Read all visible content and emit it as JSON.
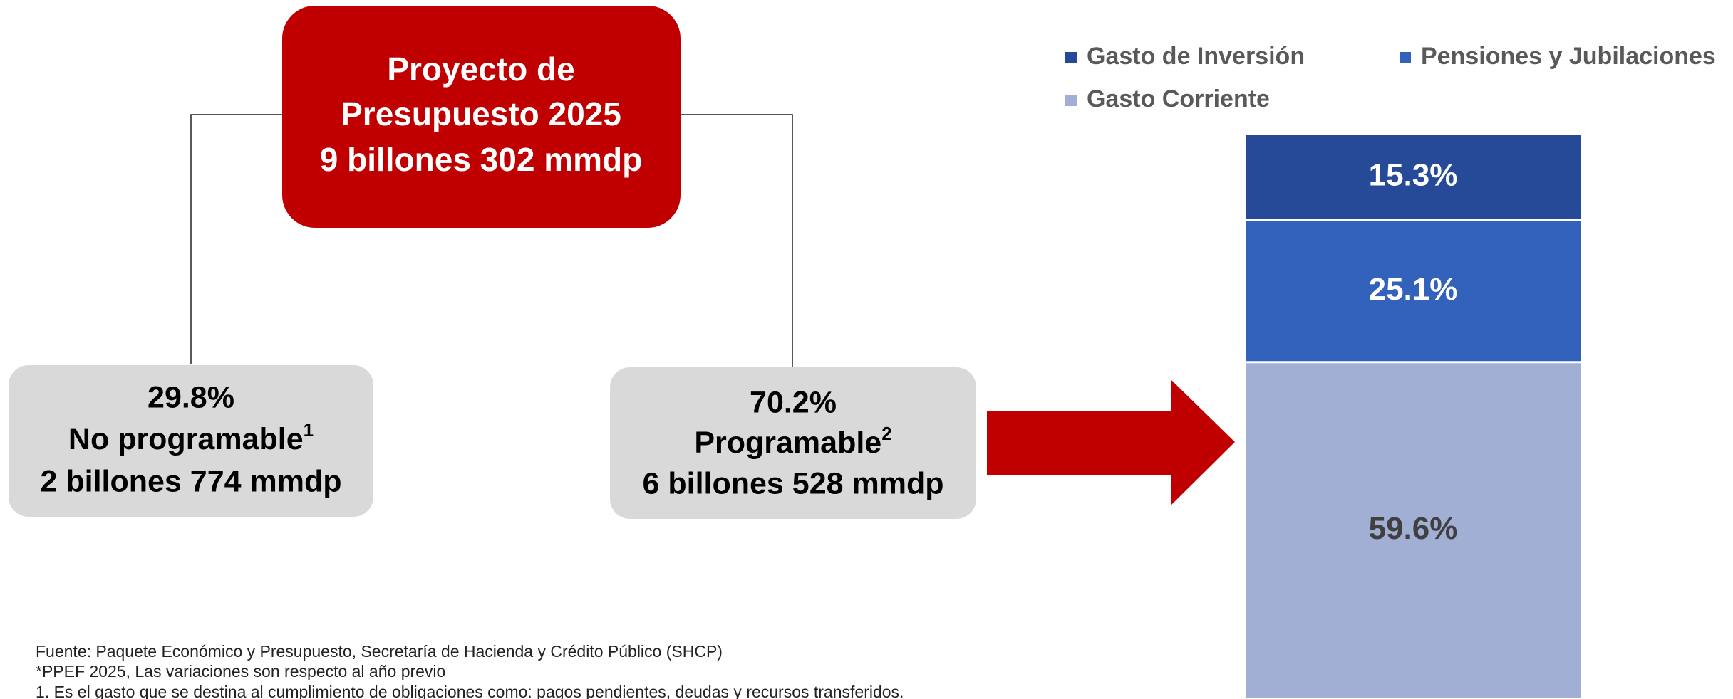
{
  "diagram": {
    "root": {
      "lines": [
        "Proyecto de",
        "Presupuesto 2025",
        "9 billones 302 mmdp"
      ]
    },
    "left": {
      "share": "29.8%",
      "label": "No programable",
      "sup": "1",
      "amount": "2 billones 774 mmdp"
    },
    "right": {
      "share": "70.2%",
      "label": "Programable",
      "sup": "2",
      "amount": "6 billones 528 mmdp"
    }
  },
  "chart_data": {
    "type": "stacked_bar",
    "ylim": [
      0,
      100
    ],
    "series": [
      {
        "name": "Gasto de Inversión",
        "color": "#264a97",
        "values": [
          15.3
        ],
        "value_labels": [
          "15.3%"
        ]
      },
      {
        "name": "Pensiones y Jubilaciones",
        "color": "#3262bc",
        "values": [
          25.1
        ],
        "value_labels": [
          "25.1%"
        ]
      },
      {
        "name": "Gasto Corriente",
        "color": "#a2afd5",
        "values": [
          59.6
        ],
        "value_labels": [
          "59.6%"
        ]
      }
    ]
  },
  "notes": [
    "Fuente: Paquete Económico y Presupuesto, Secretaría de Hacienda y Crédito Público (SHCP)",
    "*PPEF 2025, Las variaciones son respecto al año previo",
    "1. Es el gasto que se destina al cumplimiento de obligaciones como: pagos pendientes, deudas y recursos transferidos."
  ]
}
